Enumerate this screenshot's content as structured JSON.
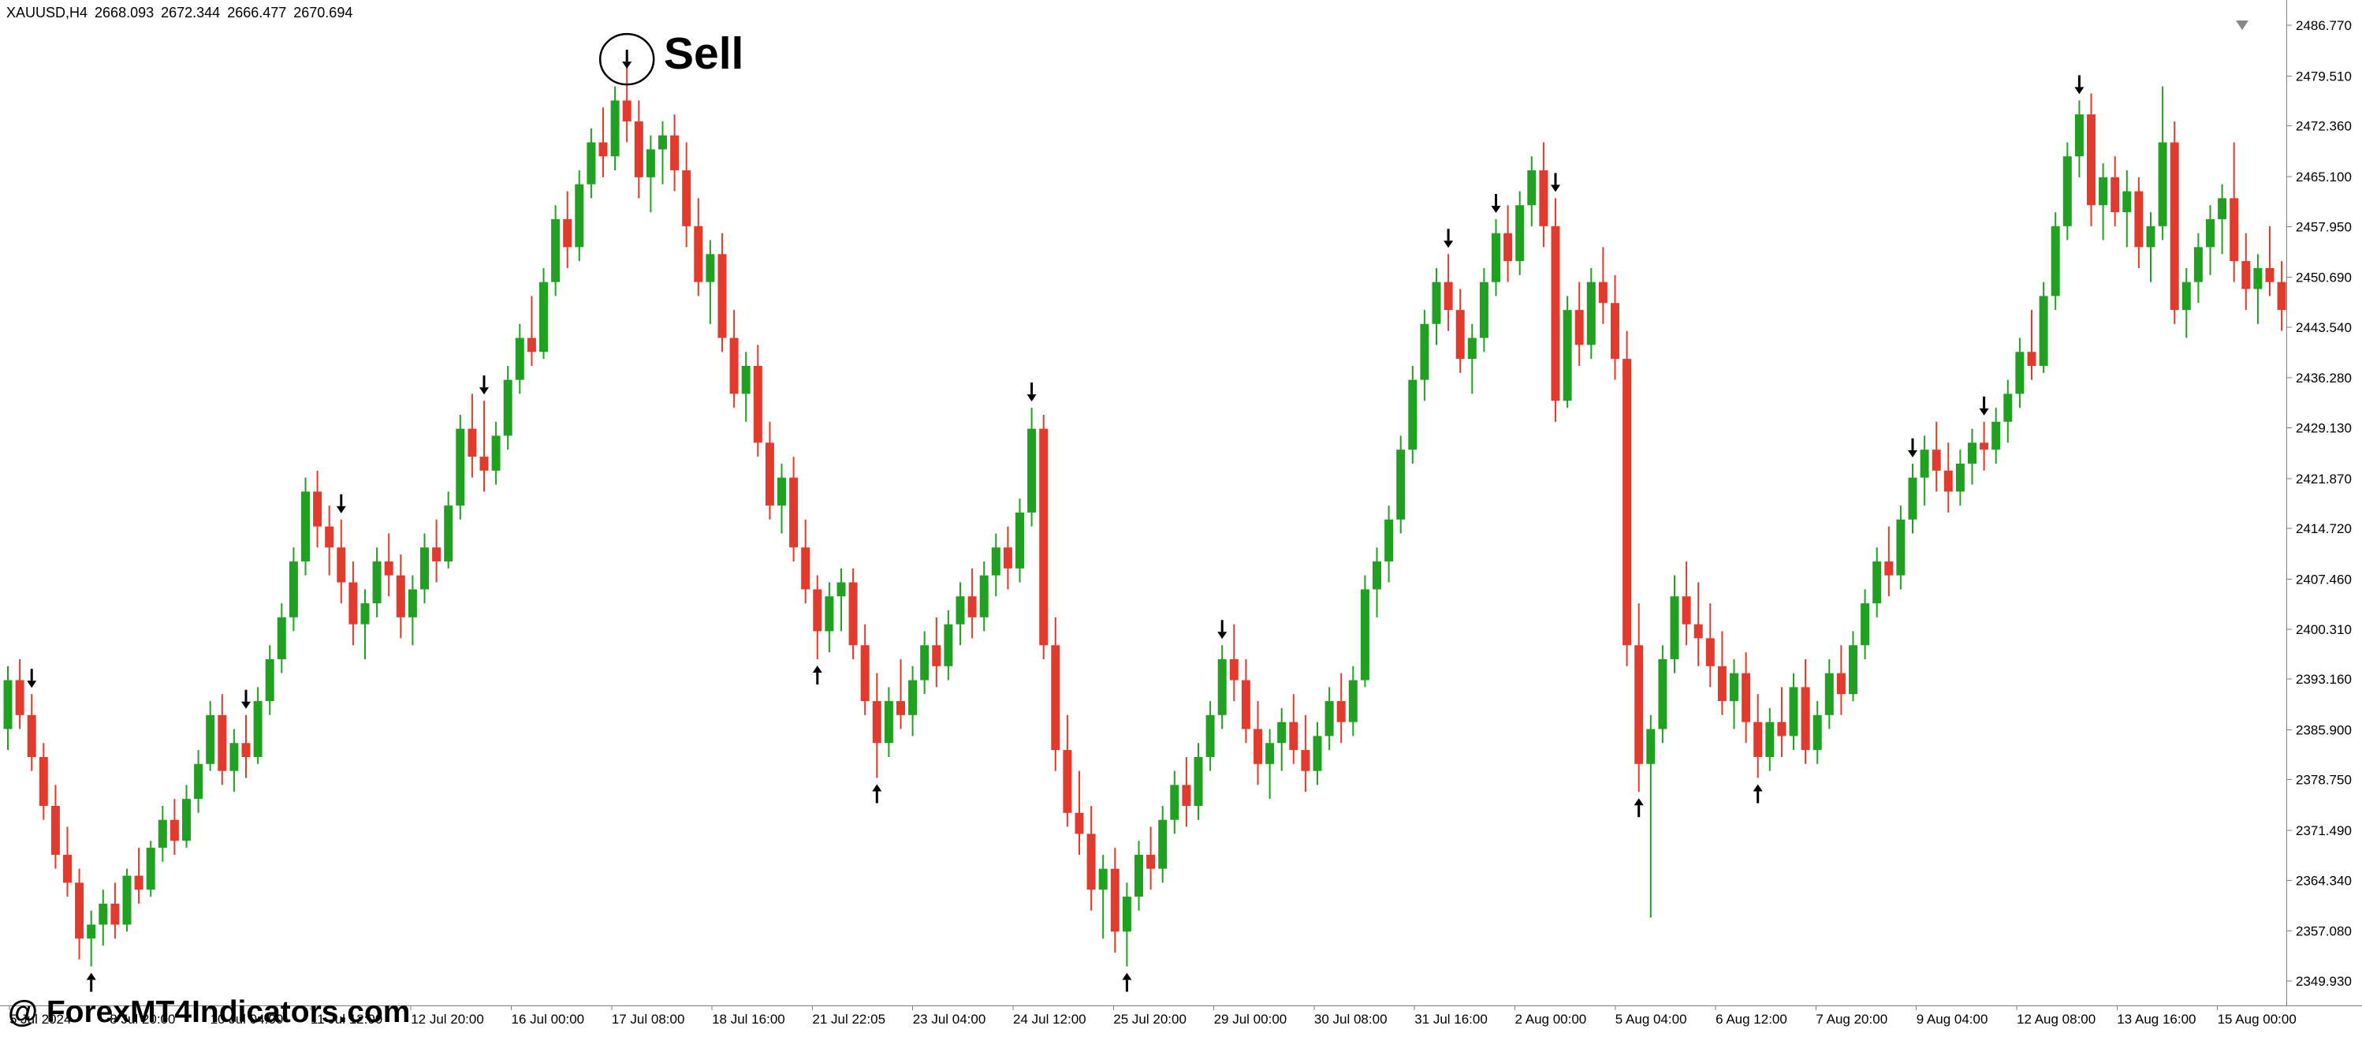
{
  "header": {
    "symbol_period": "XAUUSD,H4",
    "open": "2668.093",
    "high": "2672.344",
    "low": "2666.477",
    "close": "2670.694"
  },
  "annotation": {
    "label": "Sell"
  },
  "watermark": "@ ForexMT4Indicators.com",
  "colors": {
    "bull": "#21A121",
    "bear": "#E23B2E",
    "axis_line": "#808080",
    "text": "#000000",
    "background": "#FFFFFF",
    "signal_arrow": "#000000",
    "shift_marker": "#888888"
  },
  "price_axis": {
    "labels": [
      "2486.770",
      "2479.510",
      "2472.360",
      "2465.100",
      "2457.950",
      "2450.690",
      "2443.540",
      "2436.280",
      "2429.130",
      "2421.870",
      "2414.720",
      "2407.460",
      "2400.310",
      "2393.160",
      "2385.900",
      "2378.750",
      "2371.490",
      "2364.340",
      "2357.080",
      "2349.930"
    ]
  },
  "time_axis": {
    "labels": [
      "5 Jul 2024",
      "8 Jul 20:00",
      "10 Jul 04:00",
      "11 Jul 12:00",
      "12 Jul 20:00",
      "16 Jul 00:00",
      "17 Jul 08:00",
      "18 Jul 16:00",
      "21 Jul 22:05",
      "23 Jul 04:00",
      "24 Jul 12:00",
      "25 Jul 20:00",
      "29 Jul 00:00",
      "30 Jul 08:00",
      "31 Jul 16:00",
      "2 Aug 00:00",
      "5 Aug 04:00",
      "6 Aug 12:00",
      "7 Aug 20:00",
      "9 Aug 04:00",
      "12 Aug 08:00",
      "13 Aug 16:00",
      "15 Aug 00:00"
    ]
  },
  "chart_data": {
    "type": "candlestick",
    "symbol": "XAUUSD",
    "timeframe": "H4",
    "title": "XAUUSD,H4",
    "ylim": [
      2349.93,
      2486.77
    ],
    "grid": false,
    "candles": [
      [
        2386,
        2395,
        2383,
        2393
      ],
      [
        2393,
        2396,
        2386,
        2388
      ],
      [
        2388,
        2391,
        2380,
        2382
      ],
      [
        2382,
        2384,
        2373,
        2375
      ],
      [
        2375,
        2378,
        2366,
        2368
      ],
      [
        2368,
        2372,
        2362,
        2364
      ],
      [
        2364,
        2366,
        2353,
        2356
      ],
      [
        2356,
        2360,
        2352,
        2358
      ],
      [
        2358,
        2363,
        2355,
        2361
      ],
      [
        2361,
        2364,
        2356,
        2358
      ],
      [
        2358,
        2366,
        2357,
        2365
      ],
      [
        2365,
        2369,
        2361,
        2363
      ],
      [
        2363,
        2370,
        2362,
        2369
      ],
      [
        2369,
        2375,
        2367,
        2373
      ],
      [
        2373,
        2376,
        2368,
        2370
      ],
      [
        2370,
        2378,
        2369,
        2376
      ],
      [
        2376,
        2383,
        2374,
        2381
      ],
      [
        2381,
        2390,
        2380,
        2388
      ],
      [
        2388,
        2391,
        2378,
        2380
      ],
      [
        2380,
        2386,
        2377,
        2384
      ],
      [
        2384,
        2388,
        2379,
        2382
      ],
      [
        2382,
        2392,
        2381,
        2390
      ],
      [
        2390,
        2398,
        2388,
        2396
      ],
      [
        2396,
        2404,
        2394,
        2402
      ],
      [
        2402,
        2412,
        2400,
        2410
      ],
      [
        2410,
        2422,
        2408,
        2420
      ],
      [
        2420,
        2423,
        2412,
        2415
      ],
      [
        2415,
        2418,
        2408,
        2412
      ],
      [
        2412,
        2416,
        2404,
        2407
      ],
      [
        2407,
        2410,
        2398,
        2401
      ],
      [
        2401,
        2406,
        2396,
        2404
      ],
      [
        2404,
        2412,
        2402,
        2410
      ],
      [
        2410,
        2414,
        2405,
        2408
      ],
      [
        2408,
        2411,
        2399,
        2402
      ],
      [
        2402,
        2408,
        2398,
        2406
      ],
      [
        2406,
        2414,
        2404,
        2412
      ],
      [
        2412,
        2416,
        2407,
        2410
      ],
      [
        2410,
        2420,
        2409,
        2418
      ],
      [
        2418,
        2431,
        2416,
        2429
      ],
      [
        2429,
        2434,
        2422,
        2425
      ],
      [
        2425,
        2433,
        2420,
        2423
      ],
      [
        2423,
        2430,
        2421,
        2428
      ],
      [
        2428,
        2438,
        2426,
        2436
      ],
      [
        2436,
        2444,
        2434,
        2442
      ],
      [
        2442,
        2448,
        2438,
        2440
      ],
      [
        2440,
        2452,
        2439,
        2450
      ],
      [
        2450,
        2461,
        2448,
        2459
      ],
      [
        2459,
        2463,
        2452,
        2455
      ],
      [
        2455,
        2466,
        2453,
        2464
      ],
      [
        2464,
        2472,
        2462,
        2470
      ],
      [
        2470,
        2475,
        2465,
        2468
      ],
      [
        2468,
        2478,
        2466,
        2476
      ],
      [
        2476,
        2481,
        2470,
        2473
      ],
      [
        2473,
        2476,
        2462,
        2465
      ],
      [
        2465,
        2471,
        2460,
        2469
      ],
      [
        2469,
        2473,
        2464,
        2471
      ],
      [
        2471,
        2474,
        2463,
        2466
      ],
      [
        2466,
        2470,
        2455,
        2458
      ],
      [
        2458,
        2462,
        2448,
        2450
      ],
      [
        2450,
        2456,
        2444,
        2454
      ],
      [
        2454,
        2457,
        2440,
        2442
      ],
      [
        2442,
        2446,
        2432,
        2434
      ],
      [
        2434,
        2440,
        2430,
        2438
      ],
      [
        2438,
        2441,
        2425,
        2427
      ],
      [
        2427,
        2430,
        2416,
        2418
      ],
      [
        2418,
        2424,
        2414,
        2422
      ],
      [
        2422,
        2425,
        2410,
        2412
      ],
      [
        2412,
        2416,
        2404,
        2406
      ],
      [
        2406,
        2408,
        2396,
        2400
      ],
      [
        2400,
        2407,
        2397,
        2405
      ],
      [
        2405,
        2409,
        2400,
        2407
      ],
      [
        2407,
        2409,
        2396,
        2398
      ],
      [
        2398,
        2401,
        2388,
        2390
      ],
      [
        2390,
        2394,
        2379,
        2384
      ],
      [
        2384,
        2392,
        2382,
        2390
      ],
      [
        2390,
        2396,
        2386,
        2388
      ],
      [
        2388,
        2395,
        2385,
        2393
      ],
      [
        2393,
        2400,
        2391,
        2398
      ],
      [
        2398,
        2402,
        2392,
        2395
      ],
      [
        2395,
        2403,
        2393,
        2401
      ],
      [
        2401,
        2407,
        2398,
        2405
      ],
      [
        2405,
        2409,
        2399,
        2402
      ],
      [
        2402,
        2410,
        2400,
        2408
      ],
      [
        2408,
        2414,
        2405,
        2412
      ],
      [
        2412,
        2415,
        2406,
        2409
      ],
      [
        2409,
        2419,
        2407,
        2417
      ],
      [
        2417,
        2432,
        2415,
        2429
      ],
      [
        2429,
        2431,
        2396,
        2398
      ],
      [
        2398,
        2402,
        2380,
        2383
      ],
      [
        2383,
        2388,
        2372,
        2374
      ],
      [
        2374,
        2380,
        2368,
        2371
      ],
      [
        2371,
        2375,
        2360,
        2363
      ],
      [
        2363,
        2368,
        2356,
        2366
      ],
      [
        2366,
        2369,
        2354,
        2357
      ],
      [
        2357,
        2364,
        2352,
        2362
      ],
      [
        2362,
        2370,
        2360,
        2368
      ],
      [
        2368,
        2372,
        2363,
        2366
      ],
      [
        2366,
        2375,
        2364,
        2373
      ],
      [
        2373,
        2380,
        2371,
        2378
      ],
      [
        2378,
        2382,
        2372,
        2375
      ],
      [
        2375,
        2384,
        2373,
        2382
      ],
      [
        2382,
        2390,
        2380,
        2388
      ],
      [
        2388,
        2398,
        2386,
        2396
      ],
      [
        2396,
        2401,
        2390,
        2393
      ],
      [
        2393,
        2396,
        2384,
        2386
      ],
      [
        2386,
        2390,
        2378,
        2381
      ],
      [
        2381,
        2386,
        2376,
        2384
      ],
      [
        2384,
        2389,
        2380,
        2387
      ],
      [
        2387,
        2391,
        2381,
        2383
      ],
      [
        2383,
        2388,
        2377,
        2380
      ],
      [
        2380,
        2387,
        2378,
        2385
      ],
      [
        2385,
        2392,
        2383,
        2390
      ],
      [
        2390,
        2394,
        2384,
        2387
      ],
      [
        2387,
        2395,
        2385,
        2393
      ],
      [
        2393,
        2408,
        2392,
        2406
      ],
      [
        2406,
        2412,
        2402,
        2410
      ],
      [
        2410,
        2418,
        2407,
        2416
      ],
      [
        2416,
        2428,
        2414,
        2426
      ],
      [
        2426,
        2438,
        2424,
        2436
      ],
      [
        2436,
        2446,
        2433,
        2444
      ],
      [
        2444,
        2452,
        2441,
        2450
      ],
      [
        2450,
        2454,
        2443,
        2446
      ],
      [
        2446,
        2449,
        2437,
        2439
      ],
      [
        2439,
        2444,
        2434,
        2442
      ],
      [
        2442,
        2452,
        2440,
        2450
      ],
      [
        2450,
        2459,
        2448,
        2457
      ],
      [
        2457,
        2461,
        2450,
        2453
      ],
      [
        2453,
        2463,
        2451,
        2461
      ],
      [
        2461,
        2468,
        2458,
        2466
      ],
      [
        2466,
        2470,
        2455,
        2458
      ],
      [
        2458,
        2462,
        2430,
        2433
      ],
      [
        2433,
        2448,
        2432,
        2446
      ],
      [
        2446,
        2450,
        2438,
        2441
      ],
      [
        2441,
        2452,
        2439,
        2450
      ],
      [
        2450,
        2455,
        2444,
        2447
      ],
      [
        2447,
        2451,
        2436,
        2439
      ],
      [
        2439,
        2443,
        2395,
        2398
      ],
      [
        2398,
        2404,
        2377,
        2381
      ],
      [
        2381,
        2388,
        2359,
        2386
      ],
      [
        2386,
        2398,
        2384,
        2396
      ],
      [
        2396,
        2408,
        2394,
        2405
      ],
      [
        2405,
        2410,
        2398,
        2401
      ],
      [
        2401,
        2407,
        2395,
        2399
      ],
      [
        2399,
        2404,
        2392,
        2395
      ],
      [
        2395,
        2400,
        2388,
        2390
      ],
      [
        2390,
        2396,
        2386,
        2394
      ],
      [
        2394,
        2397,
        2384,
        2387
      ],
      [
        2387,
        2391,
        2379,
        2382
      ],
      [
        2382,
        2389,
        2380,
        2387
      ],
      [
        2387,
        2392,
        2382,
        2385
      ],
      [
        2385,
        2394,
        2383,
        2392
      ],
      [
        2392,
        2396,
        2381,
        2383
      ],
      [
        2383,
        2390,
        2381,
        2388
      ],
      [
        2388,
        2396,
        2386,
        2394
      ],
      [
        2394,
        2398,
        2388,
        2391
      ],
      [
        2391,
        2400,
        2390,
        2398
      ],
      [
        2398,
        2406,
        2396,
        2404
      ],
      [
        2404,
        2412,
        2402,
        2410
      ],
      [
        2410,
        2415,
        2405,
        2408
      ],
      [
        2408,
        2418,
        2406,
        2416
      ],
      [
        2416,
        2424,
        2414,
        2422
      ],
      [
        2422,
        2428,
        2418,
        2426
      ],
      [
        2426,
        2430,
        2420,
        2423
      ],
      [
        2423,
        2427,
        2417,
        2420
      ],
      [
        2420,
        2426,
        2418,
        2424
      ],
      [
        2424,
        2429,
        2421,
        2427
      ],
      [
        2427,
        2430,
        2423,
        2426
      ],
      [
        2426,
        2432,
        2424,
        2430
      ],
      [
        2430,
        2436,
        2427,
        2434
      ],
      [
        2434,
        2442,
        2432,
        2440
      ],
      [
        2440,
        2446,
        2436,
        2438
      ],
      [
        2438,
        2450,
        2437,
        2448
      ],
      [
        2448,
        2460,
        2446,
        2458
      ],
      [
        2458,
        2470,
        2456,
        2468
      ],
      [
        2468,
        2476,
        2465,
        2474
      ],
      [
        2474,
        2477,
        2458,
        2461
      ],
      [
        2461,
        2467,
        2456,
        2465
      ],
      [
        2465,
        2468,
        2458,
        2460
      ],
      [
        2460,
        2466,
        2455,
        2463
      ],
      [
        2463,
        2465,
        2452,
        2455
      ],
      [
        2455,
        2460,
        2450,
        2458
      ],
      [
        2458,
        2478,
        2456,
        2470
      ],
      [
        2470,
        2473,
        2444,
        2446
      ],
      [
        2446,
        2452,
        2442,
        2450
      ],
      [
        2450,
        2457,
        2447,
        2455
      ],
      [
        2455,
        2461,
        2451,
        2459
      ],
      [
        2459,
        2464,
        2454,
        2462
      ],
      [
        2462,
        2470,
        2450,
        2453
      ],
      [
        2453,
        2457,
        2446,
        2449
      ],
      [
        2449,
        2454,
        2444,
        2452
      ],
      [
        2452,
        2458,
        2448,
        2450
      ],
      [
        2450,
        2453,
        2443,
        2446
      ]
    ],
    "signals": {
      "sell_indices": [
        2,
        20,
        28,
        40,
        52,
        86,
        102,
        121,
        125,
        130,
        160,
        166,
        174
      ],
      "buy_indices": [
        7,
        68,
        73,
        94,
        137,
        147
      ],
      "circled_sell_index": 52
    }
  }
}
